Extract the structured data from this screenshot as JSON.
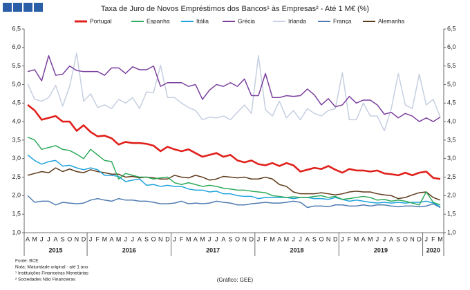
{
  "chart_data": {
    "type": "line",
    "title": "Taxa de Juro de Novos Empréstimos dos Bancos¹ às Empresas² - Até 1 M€ (%)",
    "categories": [
      "A",
      "M",
      "J",
      "J",
      "A",
      "S",
      "O",
      "N",
      "D",
      "J",
      "F",
      "M",
      "A",
      "M",
      "J",
      "J",
      "A",
      "S",
      "O",
      "N",
      "D",
      "J",
      "F",
      "M",
      "A",
      "M",
      "J",
      "J",
      "A",
      "S",
      "O",
      "N",
      "D",
      "J",
      "F",
      "M",
      "A",
      "M",
      "J",
      "J",
      "A",
      "S",
      "O",
      "N",
      "D",
      "J",
      "F",
      "M",
      "A",
      "M",
      "J",
      "J",
      "A",
      "S",
      "O",
      "N",
      "D",
      "J",
      "F",
      "M"
    ],
    "years": [
      "2015",
      "2016",
      "2017",
      "2018",
      "2019",
      "2020"
    ],
    "ylim": [
      1.0,
      6.5
    ],
    "yticks": [
      {
        "value": 1.0,
        "label": "1,0"
      },
      {
        "value": 1.5,
        "label": "1,5"
      },
      {
        "value": 2.0,
        "label": "2,0"
      },
      {
        "value": 2.5,
        "label": "2,5"
      },
      {
        "value": 3.0,
        "label": "3,0"
      },
      {
        "value": 3.5,
        "label": "3,5"
      },
      {
        "value": 4.0,
        "label": "4,0"
      },
      {
        "value": 4.5,
        "label": "4,5"
      },
      {
        "value": 5.0,
        "label": "5,0"
      },
      {
        "value": 5.5,
        "label": "5,5"
      },
      {
        "value": 6.0,
        "label": "6,0"
      },
      {
        "value": 6.5,
        "label": "6,5"
      }
    ],
    "grid": false,
    "series": [
      {
        "name": "Portugal",
        "color": "#e0201b",
        "values": [
          4.45,
          4.3,
          4.05,
          4.1,
          4.15,
          4.0,
          4.0,
          3.75,
          3.9,
          3.72,
          3.6,
          3.62,
          3.55,
          3.38,
          3.45,
          3.42,
          3.42,
          3.4,
          3.35,
          3.2,
          3.32,
          3.25,
          3.2,
          3.25,
          3.15,
          3.05,
          3.1,
          3.15,
          3.05,
          3.1,
          2.95,
          2.9,
          2.95,
          2.85,
          2.82,
          2.88,
          2.8,
          2.88,
          2.82,
          2.65,
          2.7,
          2.75,
          2.72,
          2.8,
          2.7,
          2.62,
          2.72,
          2.68,
          2.68,
          2.65,
          2.68,
          2.6,
          2.58,
          2.55,
          2.62,
          2.55,
          2.62,
          2.65,
          2.48,
          2.45
        ]
      },
      {
        "name": "Espanha",
        "color": "#2eaa5a",
        "values": [
          3.58,
          3.5,
          3.25,
          3.3,
          3.35,
          3.25,
          3.22,
          3.12,
          3.0,
          3.25,
          3.1,
          2.95,
          2.92,
          2.45,
          2.6,
          2.55,
          2.5,
          2.5,
          2.45,
          2.48,
          2.5,
          2.35,
          2.3,
          2.35,
          2.3,
          2.25,
          2.28,
          2.25,
          2.2,
          2.18,
          2.15,
          2.15,
          2.12,
          2.1,
          2.08,
          2.0,
          1.98,
          1.95,
          1.97,
          1.95,
          1.95,
          1.98,
          2.0,
          1.95,
          1.98,
          1.9,
          1.92,
          1.95,
          1.98,
          1.95,
          1.88,
          1.9,
          1.85,
          1.88,
          1.85,
          1.8,
          1.75,
          2.1,
          1.82,
          1.75
        ]
      },
      {
        "name": "Itália",
        "color": "#1fa3dc",
        "values": [
          3.1,
          2.95,
          2.85,
          2.92,
          2.95,
          2.8,
          2.82,
          2.75,
          2.7,
          2.75,
          2.7,
          2.55,
          2.55,
          2.52,
          2.38,
          2.42,
          2.45,
          2.28,
          2.3,
          2.25,
          2.28,
          2.25,
          2.25,
          2.18,
          2.15,
          2.15,
          2.1,
          2.12,
          2.05,
          2.05,
          2.0,
          1.98,
          1.98,
          1.92,
          1.95,
          1.95,
          1.95,
          1.95,
          1.92,
          1.95,
          1.95,
          1.92,
          1.92,
          1.9,
          1.95,
          1.9,
          1.85,
          1.88,
          1.85,
          1.82,
          1.8,
          1.82,
          1.8,
          1.82,
          1.8,
          1.82,
          1.82,
          1.85,
          1.8,
          1.7
        ]
      },
      {
        "name": "Grécia",
        "color": "#7a3f9e",
        "values": [
          5.35,
          5.4,
          5.1,
          5.78,
          5.25,
          5.28,
          5.5,
          5.38,
          5.35,
          5.35,
          5.35,
          5.25,
          5.45,
          5.45,
          5.3,
          5.48,
          5.4,
          5.4,
          5.5,
          4.95,
          5.05,
          5.05,
          5.05,
          4.95,
          5.0,
          4.6,
          4.85,
          5.0,
          4.95,
          5.05,
          4.95,
          5.15,
          4.7,
          4.7,
          5.3,
          4.65,
          4.65,
          4.7,
          4.68,
          4.7,
          4.88,
          4.72,
          4.45,
          4.62,
          4.4,
          4.45,
          4.68,
          4.5,
          4.58,
          4.58,
          4.45,
          4.2,
          4.25,
          4.1,
          4.22,
          4.15,
          4.0,
          4.1,
          4.0,
          4.12
        ]
      },
      {
        "name": "Irlanda",
        "color": "#c5cfe0",
        "values": [
          5.02,
          4.6,
          4.55,
          4.65,
          4.98,
          4.42,
          4.95,
          5.85,
          4.55,
          4.75,
          4.38,
          4.45,
          4.35,
          4.6,
          4.5,
          4.65,
          4.35,
          4.8,
          4.78,
          5.52,
          4.65,
          4.65,
          4.5,
          4.38,
          4.3,
          4.05,
          4.12,
          4.1,
          4.15,
          4.05,
          4.25,
          4.45,
          4.22,
          5.78,
          4.32,
          4.15,
          4.55,
          4.1,
          4.3,
          4.05,
          4.35,
          4.22,
          4.15,
          4.3,
          4.35,
          5.32,
          4.05,
          4.05,
          4.5,
          4.15,
          4.15,
          3.75,
          4.35,
          5.3,
          4.45,
          4.35,
          5.28,
          4.45,
          4.6,
          4.12
        ]
      },
      {
        "name": "França",
        "color": "#4f7bb0",
        "values": [
          2.0,
          1.82,
          1.85,
          1.85,
          1.75,
          1.82,
          1.8,
          1.78,
          1.8,
          1.88,
          1.92,
          1.88,
          1.85,
          1.92,
          1.88,
          1.88,
          1.85,
          1.85,
          1.82,
          1.78,
          1.78,
          1.8,
          1.85,
          1.78,
          1.8,
          1.78,
          1.8,
          1.85,
          1.82,
          1.8,
          1.75,
          1.75,
          1.78,
          1.8,
          1.82,
          1.8,
          1.8,
          1.82,
          1.85,
          1.82,
          1.68,
          1.72,
          1.72,
          1.7,
          1.75,
          1.75,
          1.72,
          1.72,
          1.75,
          1.72,
          1.75,
          1.75,
          1.72,
          1.7,
          1.72,
          1.72,
          1.7,
          1.72,
          1.78,
          1.68
        ]
      },
      {
        "name": "Alemanha",
        "color": "#5c3a1a",
        "values": [
          2.55,
          2.6,
          2.65,
          2.62,
          2.75,
          2.65,
          2.72,
          2.65,
          2.62,
          2.7,
          2.65,
          2.62,
          2.58,
          2.58,
          2.5,
          2.52,
          2.48,
          2.5,
          2.48,
          2.45,
          2.45,
          2.55,
          2.5,
          2.48,
          2.55,
          2.5,
          2.42,
          2.45,
          2.52,
          2.5,
          2.48,
          2.5,
          2.45,
          2.45,
          2.5,
          2.45,
          2.3,
          2.25,
          2.1,
          2.05,
          2.05,
          2.05,
          2.08,
          2.05,
          2.02,
          2.05,
          2.1,
          2.12,
          2.1,
          2.1,
          2.05,
          2.02,
          2.0,
          1.92,
          1.95,
          2.02,
          2.08,
          2.1,
          1.95,
          1.88
        ]
      }
    ],
    "notes": [
      "Fonte: BCE",
      "Nota: Maturidade original - até 1 ano",
      "¹ Instituições Financeiras Monetárias",
      "² Sociedades Não Financeiras"
    ],
    "source": "(Gráfico: GEE)"
  }
}
